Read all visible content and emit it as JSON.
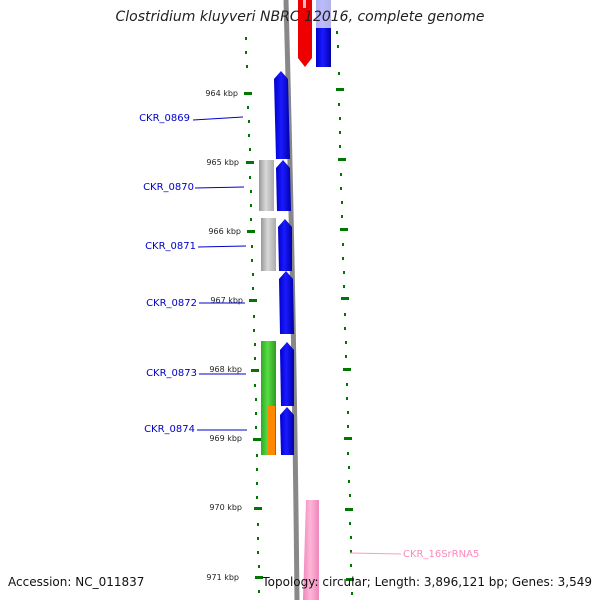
{
  "title": "Clostridium kluyveri NBRC 12016, complete genome",
  "accession": "Accession: NC_011837",
  "stats": "Topology: circular; Length: 3,896,121 bp; Genes: 3,549",
  "ruler_labels": [
    "964 kbp",
    "965 kbp",
    "966 kbp",
    "967 kbp",
    "968 kbp",
    "969 kbp",
    "970 kbp",
    "971 kbp"
  ],
  "gene_labels": [
    "CKR_0869",
    "CKR_0870",
    "CKR_0871",
    "CKR_0872",
    "CKR_0873",
    "CKR_0874"
  ],
  "rna_label": "CKR_16SrRNA5",
  "colors": {
    "cds": "#0000ee",
    "red_feature": "#ee0000",
    "gray_feature": "#bbbbbb",
    "green_feature": "#44cc33",
    "orange_feature": "#ff8800",
    "rrna": "#ff99cc",
    "ticks": "#007700",
    "backbone": "#888888",
    "label_link": "#0000cc"
  }
}
